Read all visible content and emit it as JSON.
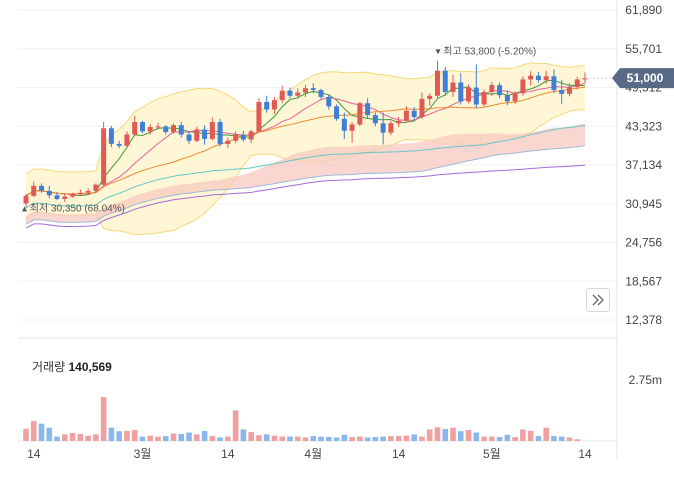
{
  "nav_button": {
    "icon": "double-chevron-right-icon"
  },
  "price_badge": {
    "label": "51,000",
    "color": "#5a6a86"
  },
  "annotations": {
    "high_label": "최고 53,800 (-5.20%)",
    "low_label": "최저 30,350 (68.04%)"
  },
  "volume_caption": {
    "label": "거래량",
    "value": "140,569"
  },
  "colors": {
    "up": "#e05a55",
    "down": "#3f7fd6",
    "vol_up": "#f0a0a0",
    "vol_down": "#8ab8ec",
    "bollinger_fill": "#fff6d6",
    "bollinger_line": "#f5d978",
    "cloud_red": "#f7c9c0",
    "cloud_blue": "#b9cfe6"
  },
  "chart_data": [
    {
      "type": "candlestick",
      "title": "",
      "y_ticks": [
        "61,890",
        "55,701",
        "49,512",
        "43,323",
        "37,134",
        "30,945",
        "24,756",
        "18,567",
        "12,378"
      ],
      "ylim": [
        12378,
        61890
      ],
      "x_ticks": [
        "14",
        "3월",
        "14",
        "4월",
        "14",
        "5월",
        "14"
      ],
      "highest": 53800,
      "lowest": 30350,
      "last": 51000,
      "candles": [
        [
          31000,
          32500,
          30350,
          32200
        ],
        [
          32200,
          34500,
          32000,
          33800
        ],
        [
          33800,
          34200,
          32700,
          33000
        ],
        [
          33000,
          33800,
          31800,
          32300
        ],
        [
          32300,
          32800,
          31500,
          31700
        ],
        [
          31700,
          32500,
          31200,
          32100
        ],
        [
          32100,
          32700,
          31900,
          32500
        ],
        [
          32500,
          33200,
          32200,
          32700
        ],
        [
          32700,
          33400,
          32300,
          33000
        ],
        [
          33000,
          34200,
          32800,
          34000
        ],
        [
          34000,
          44000,
          33800,
          43000
        ],
        [
          43000,
          43400,
          40000,
          40500
        ],
        [
          40500,
          41000,
          39800,
          40200
        ],
        [
          40200,
          42500,
          40000,
          42000
        ],
        [
          42000,
          45000,
          41800,
          44000
        ],
        [
          44000,
          44200,
          42200,
          42500
        ],
        [
          42500,
          43600,
          42000,
          43200
        ],
        [
          43200,
          43900,
          42800,
          43300
        ],
        [
          43300,
          43500,
          42000,
          42400
        ],
        [
          42400,
          43800,
          42100,
          43500
        ],
        [
          43500,
          44000,
          41500,
          42000
        ],
        [
          42000,
          42500,
          40500,
          41000
        ],
        [
          41000,
          43200,
          40800,
          42800
        ],
        [
          42800,
          43500,
          40400,
          41300
        ],
        [
          41300,
          44700,
          41100,
          44000
        ],
        [
          44000,
          44500,
          40100,
          40500
        ],
        [
          40500,
          41500,
          39800,
          41000
        ],
        [
          41000,
          42500,
          40600,
          42000
        ],
        [
          42000,
          42600,
          40900,
          41200
        ],
        [
          41200,
          42800,
          40600,
          42500
        ],
        [
          42500,
          47800,
          42300,
          47200
        ],
        [
          47200,
          48200,
          45500,
          46000
        ],
        [
          46000,
          48000,
          45300,
          47500
        ],
        [
          47500,
          49800,
          47000,
          49000
        ],
        [
          49000,
          49500,
          47800,
          48200
        ],
        [
          48200,
          49400,
          47700,
          48700
        ],
        [
          48700,
          49900,
          48000,
          49400
        ],
        [
          49400,
          50200,
          48600,
          49100
        ],
        [
          49100,
          49300,
          47600,
          48000
        ],
        [
          48000,
          48400,
          46000,
          46500
        ],
        [
          46500,
          46800,
          44200,
          44500
        ],
        [
          44500,
          45500,
          41300,
          42600
        ],
        [
          42600,
          44000,
          40700,
          43600
        ],
        [
          43600,
          47200,
          43300,
          47000
        ],
        [
          47000,
          47800,
          44600,
          45100
        ],
        [
          45100,
          45500,
          43300,
          43800
        ],
        [
          43800,
          45500,
          40400,
          42300
        ],
        [
          42300,
          44200,
          41900,
          43800
        ],
        [
          43800,
          44800,
          43200,
          44200
        ],
        [
          44200,
          46500,
          43900,
          45800
        ],
        [
          45800,
          46400,
          44200,
          44800
        ],
        [
          44800,
          48700,
          44500,
          47700
        ],
        [
          47700,
          48600,
          46600,
          48200
        ],
        [
          48200,
          53800,
          47800,
          52200
        ],
        [
          52200,
          52800,
          48200,
          48800
        ],
        [
          48800,
          51500,
          48000,
          50300
        ],
        [
          50300,
          51800,
          46800,
          47300
        ],
        [
          47300,
          50000,
          47000,
          49500
        ],
        [
          49500,
          53200,
          46200,
          46800
        ],
        [
          46800,
          49200,
          46500,
          48800
        ],
        [
          48800,
          50400,
          48200,
          49900
        ],
        [
          49900,
          50300,
          47800,
          48300
        ],
        [
          48300,
          49100,
          46700,
          47300
        ],
        [
          47300,
          48900,
          46900,
          48600
        ],
        [
          48600,
          51300,
          48200,
          50800
        ],
        [
          50800,
          52100,
          49800,
          51400
        ],
        [
          51400,
          52000,
          50300,
          50700
        ],
        [
          50700,
          52200,
          50100,
          51300
        ],
        [
          51300,
          52400,
          48600,
          49100
        ],
        [
          49100,
          50700,
          46900,
          48500
        ],
        [
          48500,
          50200,
          48100,
          49600
        ],
        [
          49600,
          51200,
          49200,
          50800
        ],
        [
          50800,
          51900,
          50200,
          51000
        ]
      ],
      "volume": [
        0.55,
        0.9,
        0.78,
        0.6,
        0.2,
        0.3,
        0.36,
        0.32,
        0.24,
        0.3,
        1.98,
        0.6,
        0.44,
        0.46,
        0.5,
        0.2,
        0.24,
        0.2,
        0.22,
        0.34,
        0.32,
        0.38,
        0.3,
        0.45,
        0.22,
        0.16,
        0.2,
        1.38,
        0.52,
        0.4,
        0.26,
        0.3,
        0.24,
        0.2,
        0.2,
        0.2,
        0.16,
        0.22,
        0.2,
        0.18,
        0.16,
        0.28,
        0.18,
        0.2,
        0.16,
        0.18,
        0.2,
        0.22,
        0.22,
        0.24,
        0.3,
        0.2,
        0.52,
        0.62,
        0.54,
        0.6,
        0.44,
        0.5,
        0.38,
        0.2,
        0.2,
        0.18,
        0.28,
        0.18,
        0.52,
        0.46,
        0.22,
        0.6,
        0.22,
        0.2,
        0.16,
        0.08,
        0.0
      ],
      "volume_ticks": [
        "2.75m"
      ],
      "volume_max_label": 2.75
    }
  ]
}
